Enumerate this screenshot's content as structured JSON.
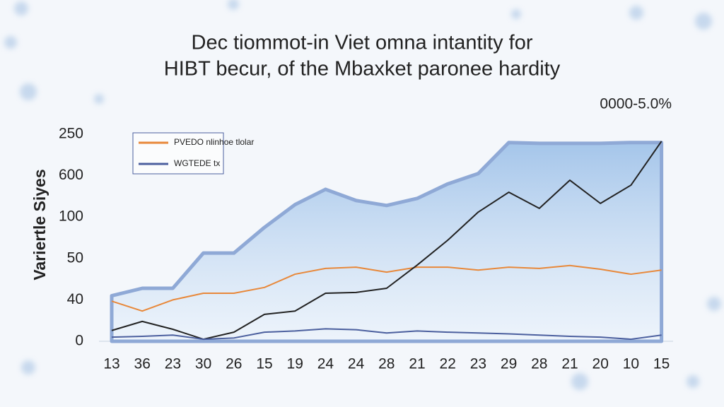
{
  "chart_data": {
    "type": "line",
    "title": [
      "Dec tiommot-in Viet omna intantity for",
      "HIBT becur, of the Mbaxket paronee hardity"
    ],
    "subtitle": "0000-5.0%",
    "y_label": "Variertle Siyes",
    "categories": [
      "13",
      "36",
      "23",
      "30",
      "26",
      "15",
      "19",
      "24",
      "24",
      "28",
      "21",
      "22",
      "23",
      "29",
      "28",
      "21",
      "20",
      "10",
      "15"
    ],
    "ylim": [
      0,
      5
    ],
    "yticks": [
      {
        "value": 0,
        "label": "0"
      },
      {
        "value": 1,
        "label": "40"
      },
      {
        "value": 2,
        "label": "50"
      },
      {
        "value": 3,
        "label": "100"
      },
      {
        "value": 4,
        "label": "600"
      },
      {
        "value": 5,
        "label": "250"
      }
    ],
    "grid": false,
    "legend": "top-left",
    "series": [
      {
        "type": "area",
        "color": "#8fa9d6",
        "values": [
          1.1,
          1.28,
          1.28,
          2.13,
          2.13,
          2.75,
          3.3,
          3.67,
          3.4,
          3.28,
          3.45,
          3.8,
          4.05,
          4.8,
          4.78,
          4.78,
          4.78,
          4.8,
          4.8
        ]
      },
      {
        "name": "PVEDO nlinhoe tlolar",
        "type": "line",
        "color": "#e8883a",
        "values": [
          0.97,
          0.73,
          1.0,
          1.16,
          1.16,
          1.3,
          1.62,
          1.76,
          1.79,
          1.67,
          1.79,
          1.79,
          1.72,
          1.79,
          1.76,
          1.83,
          1.74,
          1.62,
          1.72
        ]
      },
      {
        "type": "line",
        "color": "#222222",
        "values": [
          0.26,
          0.48,
          0.29,
          0.05,
          0.22,
          0.65,
          0.73,
          1.16,
          1.18,
          1.28,
          1.84,
          2.44,
          3.12,
          3.6,
          3.21,
          3.89,
          3.33,
          3.77,
          4.83
        ]
      },
      {
        "name": "WGTEDE tx",
        "type": "line",
        "color": "#4b5f9e",
        "values": [
          0.1,
          0.12,
          0.15,
          0.05,
          0.08,
          0.22,
          0.25,
          0.3,
          0.28,
          0.2,
          0.25,
          0.22,
          0.2,
          0.18,
          0.15,
          0.12,
          0.1,
          0.05,
          0.15
        ]
      }
    ]
  }
}
